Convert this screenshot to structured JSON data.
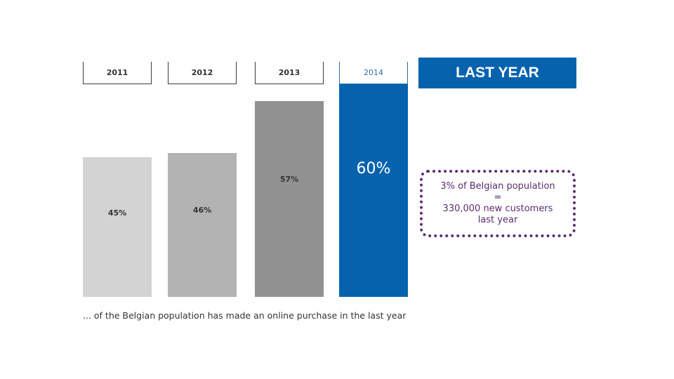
{
  "chart_data": {
    "type": "bar",
    "categories": [
      "2011",
      "2012",
      "2013",
      "2014"
    ],
    "values": [
      45,
      46,
      57,
      60
    ],
    "value_labels": [
      "45%",
      "46%",
      "57%",
      "60%"
    ],
    "highlight_index": 3,
    "colors": [
      "#d3d3d3",
      "#b3b3b3",
      "#919191",
      "#0563ad"
    ],
    "caption": "... of the Belgian population has made an online purchase in the last year",
    "ylim": [
      0,
      100
    ]
  },
  "badge": {
    "label": "LAST YEAR",
    "color": "#0563ad"
  },
  "callout": {
    "lines": [
      "3% of Belgian population",
      "=",
      "330,000 new customers",
      "last year"
    ],
    "color": "#5a2e6e"
  }
}
